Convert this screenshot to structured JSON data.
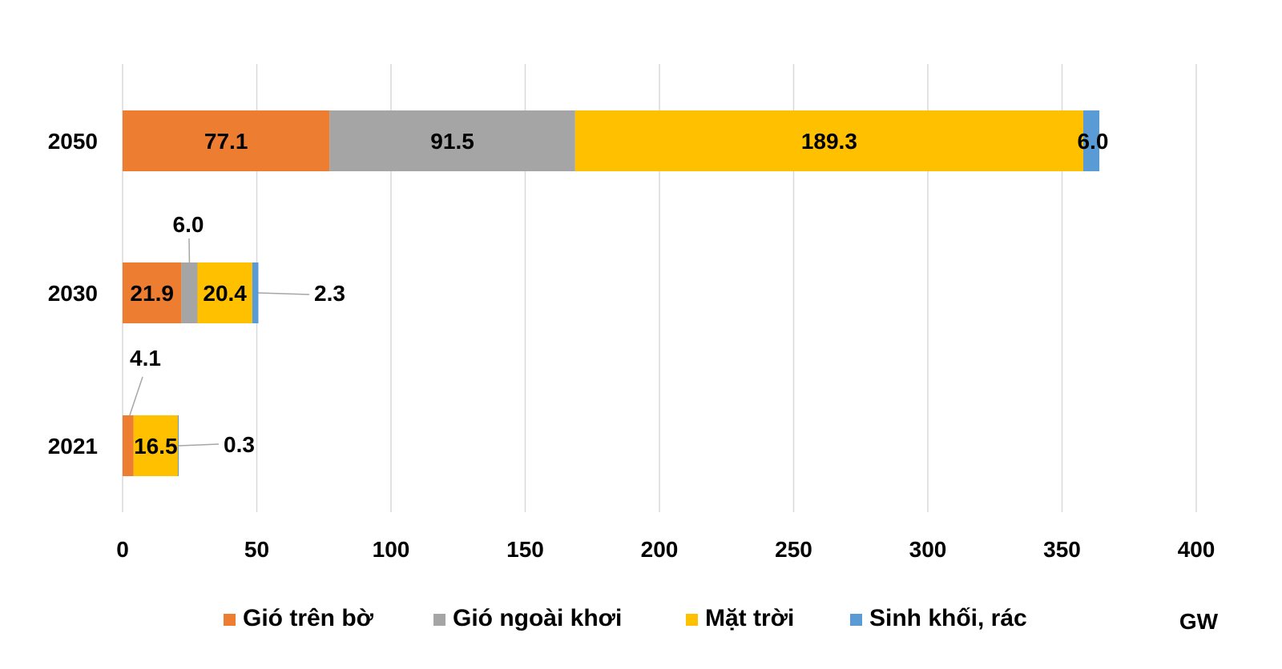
{
  "chart_data": {
    "type": "bar",
    "orientation": "horizontal",
    "stacked": true,
    "categories": [
      "2050",
      "2030",
      "2021"
    ],
    "series": [
      {
        "name": "Gió trên bờ",
        "color": "#ED7D31",
        "values": [
          77.1,
          21.9,
          4.1
        ]
      },
      {
        "name": "Gió ngoài khơi",
        "color": "#A5A5A5",
        "values": [
          91.5,
          6.0,
          0
        ]
      },
      {
        "name": "Mặt trời",
        "color": "#FFC000",
        "values": [
          189.3,
          20.4,
          16.5
        ]
      },
      {
        "name": "Sinh khối, rác",
        "color": "#5B9BD5",
        "values": [
          6.0,
          2.3,
          0.3
        ]
      }
    ],
    "data_labels": [
      [
        "77.1",
        "91.5",
        "189.3",
        "6.0"
      ],
      [
        "21.9",
        "6.0",
        "20.4",
        "2.3"
      ],
      [
        "4.1",
        "",
        "16.5",
        "0.3"
      ]
    ],
    "xlim": [
      0,
      400
    ],
    "x_ticks": [
      0,
      50,
      100,
      150,
      200,
      250,
      300,
      350,
      400
    ],
    "xlabel": "GW",
    "ylabel": "",
    "title": "",
    "grid": "vertical",
    "legend_position": "bottom"
  }
}
